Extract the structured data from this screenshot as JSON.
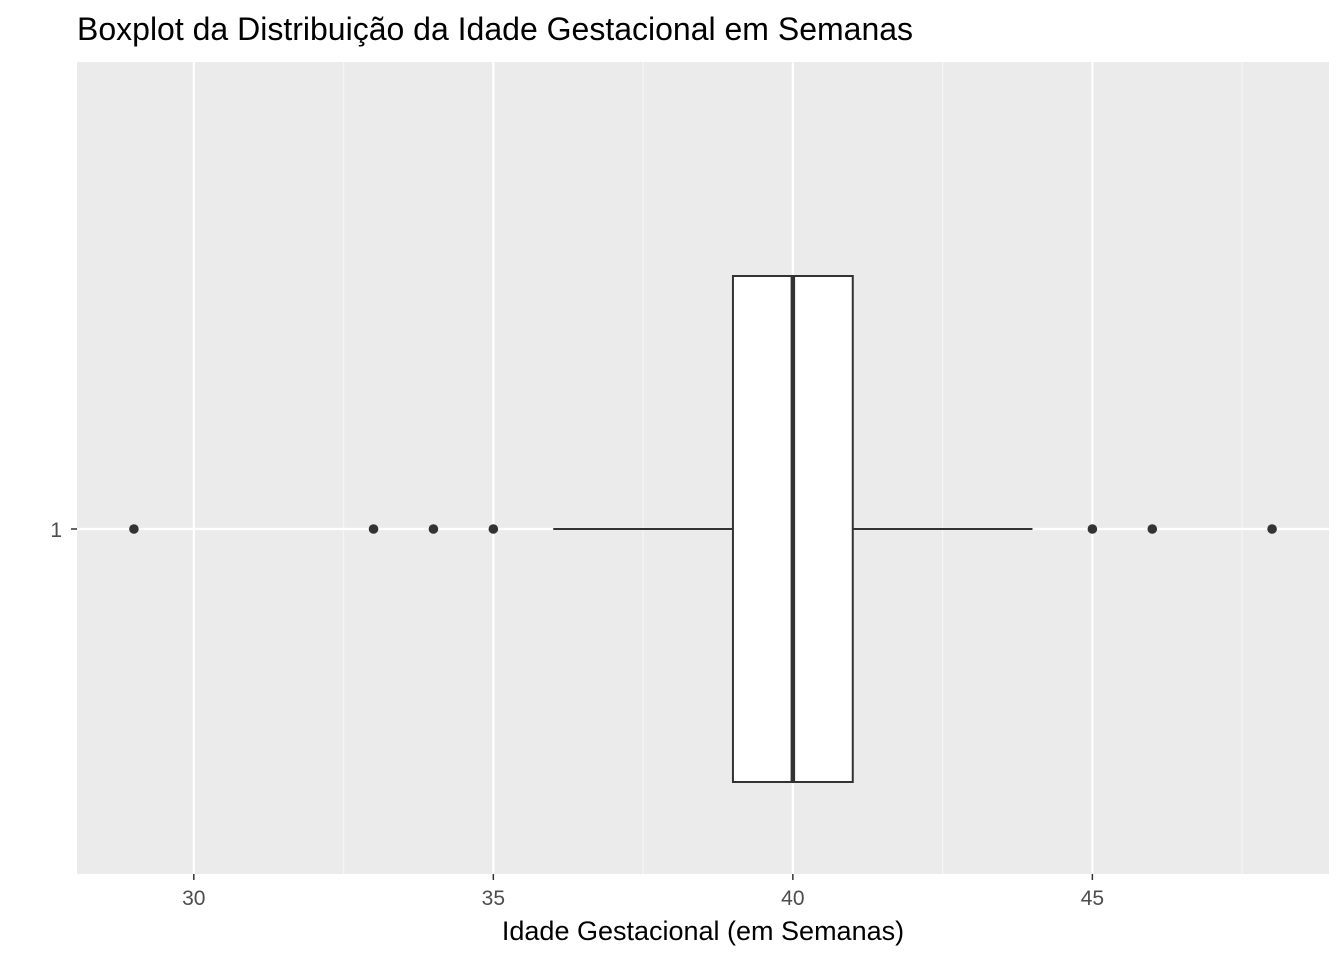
{
  "chart_data": {
    "type": "boxplot",
    "orientation": "horizontal",
    "title": "Boxplot da Distribuição da Idade Gestacional em Semanas",
    "xlabel": "Idade Gestacional (em Semanas)",
    "ylabel": "",
    "xlim": [
      28.05,
      48.95
    ],
    "x_ticks": [
      30,
      35,
      40,
      45
    ],
    "x_tick_labels": [
      "30",
      "35",
      "40",
      "45"
    ],
    "categories": [
      "1"
    ],
    "box": {
      "category": "1",
      "whisker_low": 36,
      "q1": 39,
      "median": 40,
      "q3": 41,
      "whisker_high": 44
    },
    "outliers": [
      29,
      33,
      34,
      35,
      45,
      46,
      48
    ],
    "grid": true,
    "legend": "none",
    "colors": {
      "panel_background": "#EBEBEB",
      "grid_major": "#FFFFFF",
      "grid_minor": "#F5F5F5",
      "box_fill": "#FFFFFF",
      "box_line": "#333333",
      "point": "#333333",
      "tick_text": "#4D4D4D",
      "title_text": "#000000"
    }
  }
}
